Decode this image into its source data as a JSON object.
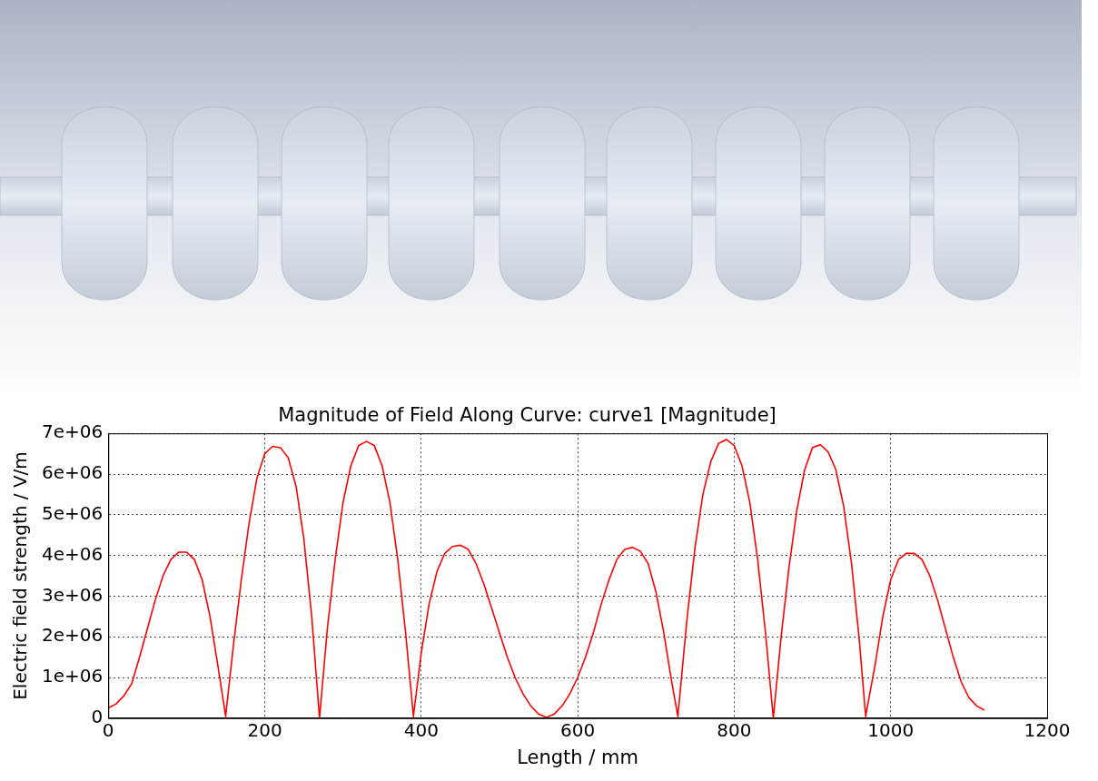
{
  "chart_data": {
    "type": "line",
    "title": "Magnitude of Field Along Curve: curve1 [Magnitude]",
    "x_label": "Length / mm",
    "y_label": "Electric field strength / V/m",
    "color": "#ff0000",
    "grid": true,
    "xlim": [
      0,
      1200
    ],
    "xticks": [
      0,
      200,
      400,
      600,
      800,
      1000,
      1200
    ],
    "ylim": [
      0,
      7000000
    ],
    "yticks": [
      0,
      {
        "value": 1000000,
        "label": "1e+06"
      },
      {
        "value": 2000000,
        "label": "2e+06"
      },
      {
        "value": 3000000,
        "label": "3e+06"
      },
      {
        "value": 4000000,
        "label": "4e+06"
      },
      {
        "value": 5000000,
        "label": "5e+06"
      },
      {
        "value": 6000000,
        "label": "6e+06"
      },
      {
        "value": 7000000,
        "label": "7e+06"
      }
    ],
    "x": [
      0,
      10,
      20,
      30,
      40,
      50,
      60,
      70,
      80,
      90,
      100,
      110,
      120,
      130,
      140,
      150,
      160,
      170,
      180,
      190,
      200,
      210,
      220,
      230,
      240,
      250,
      260,
      270,
      280,
      290,
      300,
      310,
      320,
      330,
      340,
      350,
      360,
      370,
      380,
      390,
      400,
      410,
      420,
      430,
      440,
      450,
      460,
      470,
      480,
      490,
      500,
      510,
      520,
      530,
      540,
      550,
      560,
      570,
      580,
      590,
      600,
      610,
      620,
      630,
      640,
      650,
      660,
      670,
      680,
      690,
      700,
      710,
      720,
      728,
      740,
      750,
      760,
      770,
      780,
      790,
      800,
      810,
      820,
      830,
      840,
      850,
      860,
      870,
      880,
      890,
      900,
      910,
      920,
      930,
      940,
      950,
      960,
      968,
      980,
      990,
      1000,
      1010,
      1020,
      1030,
      1040,
      1050,
      1060,
      1070,
      1080,
      1090,
      1100,
      1110,
      1120
    ],
    "values": [
      250000,
      350000,
      550000,
      850000,
      1500000,
      2200000,
      2900000,
      3500000,
      3900000,
      4080000,
      4080000,
      3900000,
      3400000,
      2500000,
      1300000,
      50000,
      1800000,
      3400000,
      4800000,
      5900000,
      6500000,
      6680000,
      6650000,
      6400000,
      5700000,
      4400000,
      2500000,
      0,
      2200000,
      3900000,
      5300000,
      6200000,
      6700000,
      6800000,
      6700000,
      6200000,
      5300000,
      3900000,
      2100000,
      50000,
      1600000,
      2800000,
      3600000,
      4050000,
      4220000,
      4250000,
      4150000,
      3800000,
      3300000,
      2700000,
      2100000,
      1500000,
      1000000,
      600000,
      300000,
      100000,
      20000,
      100000,
      300000,
      600000,
      1000000,
      1500000,
      2100000,
      2800000,
      3400000,
      3900000,
      4150000,
      4200000,
      4100000,
      3800000,
      3100000,
      2100000,
      900000,
      50000,
      2500000,
      4200000,
      5500000,
      6300000,
      6750000,
      6850000,
      6700000,
      6200000,
      5300000,
      3900000,
      2100000,
      0,
      2000000,
      3700000,
      5100000,
      6100000,
      6650000,
      6720000,
      6550000,
      6100000,
      5200000,
      3800000,
      1900000,
      50000,
      1300000,
      2500000,
      3400000,
      3900000,
      4050000,
      4050000,
      3900000,
      3500000,
      2900000,
      2200000,
      1500000,
      900000,
      500000,
      300000,
      200000
    ]
  }
}
